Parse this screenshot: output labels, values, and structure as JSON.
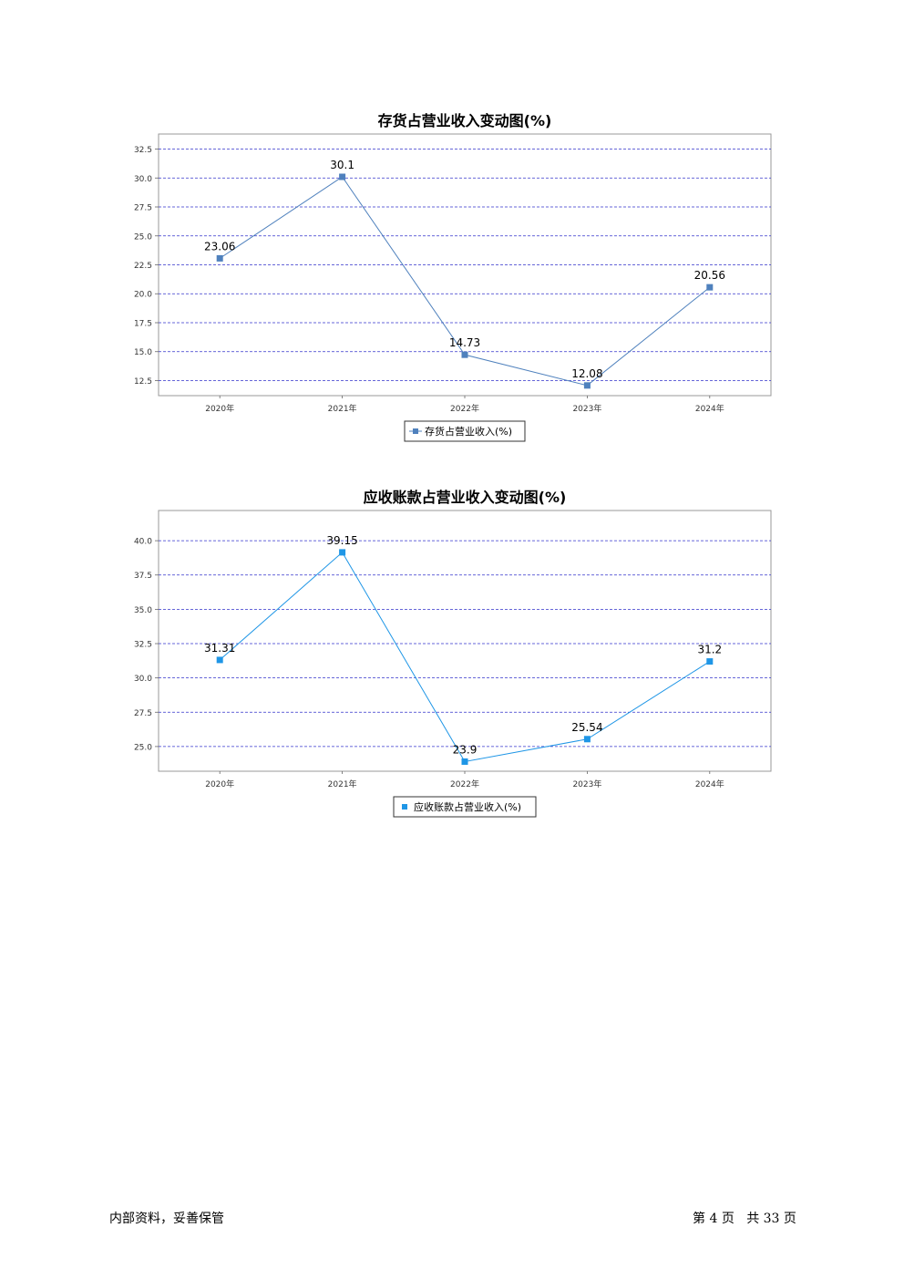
{
  "footer": {
    "left_text": "内部资料，妥善保管",
    "page_prefix": "第",
    "page_number": "4",
    "page_mid": "页",
    "total_prefix": "共",
    "total_pages": "33",
    "total_suffix": "页"
  },
  "chart_data": [
    {
      "type": "line",
      "title": "存货占营业收入变动图(%)",
      "categories": [
        "2020年",
        "2021年",
        "2022年",
        "2023年",
        "2024年"
      ],
      "series": [
        {
          "name": "存货占营业收入(%)",
          "values": [
            23.06,
            30.1,
            14.73,
            12.08,
            20.56
          ],
          "labels": [
            "23.06",
            "30.1",
            "14.73",
            "12.08",
            "20.56"
          ]
        }
      ],
      "ylim": [
        11.2,
        33.8
      ],
      "yticks": [
        12.5,
        15.0,
        17.5,
        20.0,
        22.5,
        25.0,
        27.5,
        30.0,
        32.5
      ],
      "ytick_labels": [
        "12.5",
        "15.0",
        "17.5",
        "20.0",
        "22.5",
        "25.0",
        "27.5",
        "30.0",
        "32.5"
      ],
      "color": "#4f81bd",
      "grid": true,
      "legend": "bottom-center"
    },
    {
      "type": "line",
      "title": "应收账款占营业收入变动图(%)",
      "categories": [
        "2020年",
        "2021年",
        "2022年",
        "2023年",
        "2024年"
      ],
      "series": [
        {
          "name": "应收账款占营业收入(%)",
          "values": [
            31.31,
            39.15,
            23.9,
            25.54,
            31.2
          ],
          "labels": [
            "31.31",
            "39.15",
            "23.9",
            "25.54",
            "31.2"
          ]
        }
      ],
      "ylim": [
        23.2,
        42.2
      ],
      "yticks": [
        25.0,
        27.5,
        30.0,
        32.5,
        35.0,
        37.5,
        40.0
      ],
      "ytick_labels": [
        "25.0",
        "27.5",
        "30.0",
        "32.5",
        "35.0",
        "37.5",
        "40.0"
      ],
      "color": "#1f96e6",
      "grid": true,
      "legend": "bottom-center"
    }
  ]
}
